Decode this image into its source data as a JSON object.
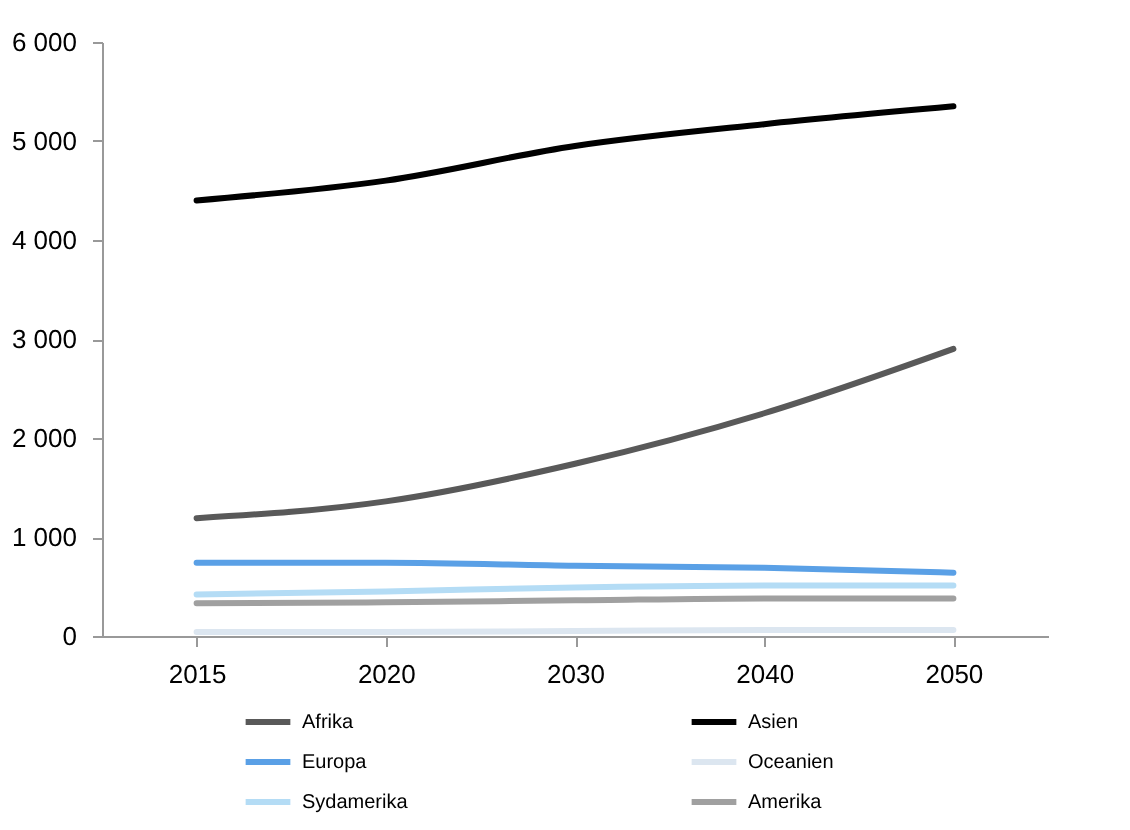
{
  "chart_data": {
    "type": "line",
    "categories": [
      "2015",
      "2020",
      "2030",
      "2040",
      "2050"
    ],
    "series": [
      {
        "name": "Afrika",
        "color": "#595959",
        "values": [
          1190,
          1360,
          1740,
          2250,
          2900
        ]
      },
      {
        "name": "Asien",
        "color": "#000000",
        "values": [
          4400,
          4600,
          4950,
          5170,
          5350
        ]
      },
      {
        "name": "Europa",
        "color": "#5aa0e6",
        "values": [
          740,
          740,
          710,
          690,
          640
        ]
      },
      {
        "name": "Oceanien",
        "color": "#dce6f0",
        "values": [
          40,
          40,
          50,
          60,
          60
        ]
      },
      {
        "name": "Sydamerika",
        "color": "#b4dcf5",
        "values": [
          420,
          450,
          490,
          510,
          510
        ]
      },
      {
        "name": "Amerika",
        "color": "#a0a0a0",
        "values": [
          330,
          340,
          360,
          380,
          380
        ]
      }
    ],
    "ylim": [
      0,
      6000
    ],
    "yticks": [
      {
        "value": 0,
        "label": "0"
      },
      {
        "value": 1000,
        "label": "1 000"
      },
      {
        "value": 2000,
        "label": "2 000"
      },
      {
        "value": 3000,
        "label": "3 000"
      },
      {
        "value": 4000,
        "label": "4 000"
      },
      {
        "value": 5000,
        "label": "5 000"
      },
      {
        "value": 6000,
        "label": "6 000"
      }
    ],
    "grid": false,
    "legend": "bottom",
    "marker": "none",
    "line_style": "solid"
  }
}
